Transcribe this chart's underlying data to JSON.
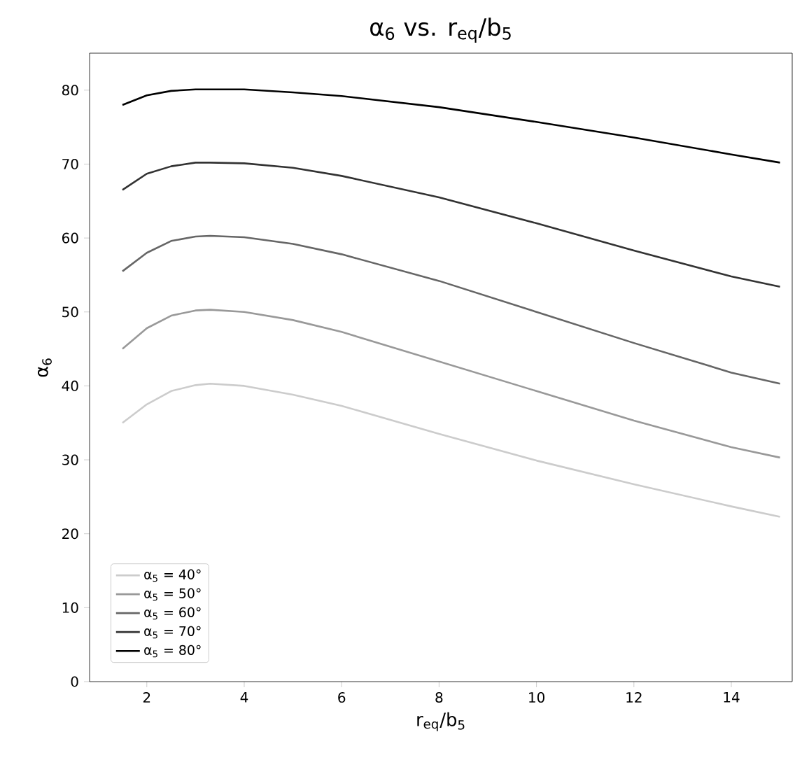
{
  "chart_data": {
    "type": "line",
    "title": "α$_{6}$ vs. r$_{eq}$/b$_{5}$",
    "xlabel": "r$_{eq}$/b$_{5}$",
    "ylabel": "α$_{6}$",
    "x": [
      1.5,
      2,
      2.5,
      3,
      3.3,
      4,
      5,
      6,
      8,
      10,
      12,
      14,
      15
    ],
    "series": [
      {
        "name": "α$_{5}$ = 40°",
        "color": "#cccccc",
        "values": [
          35,
          37.5,
          39.3,
          40.1,
          40.3,
          40,
          38.8,
          37.3,
          33.5,
          29.9,
          26.7,
          23.7,
          22.3
        ]
      },
      {
        "name": "α$_{5}$ = 50°",
        "color": "#999999",
        "values": [
          45,
          47.8,
          49.5,
          50.2,
          50.3,
          50,
          48.9,
          47.3,
          43.3,
          39.3,
          35.3,
          31.7,
          30.3
        ]
      },
      {
        "name": "α$_{5}$ = 60°",
        "color": "#666666",
        "values": [
          55.5,
          58,
          59.6,
          60.2,
          60.3,
          60.1,
          59.2,
          57.8,
          54.2,
          50,
          45.8,
          41.8,
          40.3
        ]
      },
      {
        "name": "α$_{5}$ = 70°",
        "color": "#333333",
        "values": [
          66.5,
          68.7,
          69.7,
          70.2,
          70.2,
          70.1,
          69.5,
          68.4,
          65.5,
          62,
          58.3,
          54.8,
          53.4
        ]
      },
      {
        "name": "α$_{5}$ = 80°",
        "color": "#000000",
        "values": [
          78,
          79.3,
          79.9,
          80.1,
          80.1,
          80.1,
          79.7,
          79.2,
          77.7,
          75.7,
          73.6,
          71.3,
          70.2
        ]
      }
    ],
    "xlim": [
      0.825,
      15.25
    ],
    "ylim": [
      0,
      85
    ],
    "xticks": [
      2,
      4,
      6,
      8,
      10,
      12,
      14
    ],
    "yticks": [
      0,
      10,
      20,
      30,
      40,
      50,
      60,
      70,
      80
    ],
    "grid": false,
    "legend": "bottom left",
    "marker": "none",
    "line_style": "solid"
  }
}
